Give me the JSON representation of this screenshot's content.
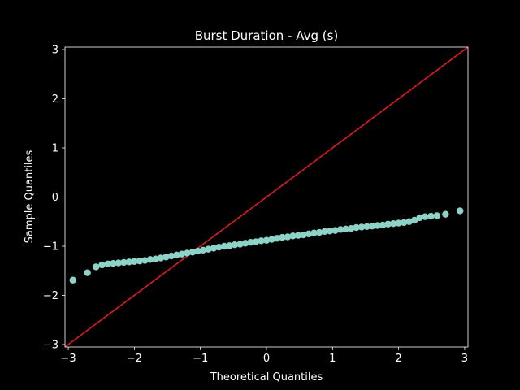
{
  "chart_data": {
    "type": "scatter",
    "title": "Burst Duration - Avg (s)",
    "xlabel": "Theoretical Quantiles",
    "ylabel": "Sample Quantiles",
    "xlim": [
      -3.05,
      3.05
    ],
    "ylim": [
      -3.05,
      3.05
    ],
    "xticks": [
      -3,
      -2,
      -1,
      0,
      1,
      2,
      3
    ],
    "xtick_labels": [
      "−3",
      "−2",
      "−1",
      "0",
      "1",
      "2",
      "3"
    ],
    "yticks": [
      -3,
      -2,
      -1,
      0,
      1,
      2,
      3
    ],
    "ytick_labels": [
      "−3",
      "−2",
      "−1",
      "0",
      "1",
      "2",
      "3"
    ],
    "grid": false,
    "background": "#000000",
    "marker_color": "#8dd3c7",
    "line_color": "#e41a1c",
    "reference_line": {
      "x": [
        -3.05,
        3.05
      ],
      "y": [
        -3.05,
        3.05
      ]
    },
    "series": [
      {
        "x": [
          -2.93,
          -2.71,
          -2.58,
          -2.49,
          -2.4,
          -2.32,
          -2.24,
          -2.16,
          -2.08,
          -2.0,
          -1.92,
          -1.84,
          -1.76,
          -1.68,
          -1.6,
          -1.52,
          -1.44,
          -1.36,
          -1.28,
          -1.2,
          -1.12,
          -1.04,
          -0.96,
          -0.88,
          -0.8,
          -0.72,
          -0.64,
          -0.56,
          -0.48,
          -0.4,
          -0.32,
          -0.24,
          -0.16,
          -0.08,
          0.0,
          0.08,
          0.16,
          0.24,
          0.32,
          0.4,
          0.48,
          0.56,
          0.64,
          0.72,
          0.8,
          0.88,
          0.96,
          1.04,
          1.12,
          1.2,
          1.28,
          1.36,
          1.44,
          1.52,
          1.6,
          1.68,
          1.76,
          1.84,
          1.92,
          2.0,
          2.08,
          2.16,
          2.24,
          2.32,
          2.4,
          2.49,
          2.58,
          2.71,
          2.93
        ],
        "y": [
          -1.69,
          -1.54,
          -1.42,
          -1.38,
          -1.36,
          -1.35,
          -1.34,
          -1.33,
          -1.32,
          -1.31,
          -1.3,
          -1.29,
          -1.27,
          -1.26,
          -1.24,
          -1.22,
          -1.2,
          -1.18,
          -1.16,
          -1.14,
          -1.12,
          -1.1,
          -1.08,
          -1.06,
          -1.04,
          -1.02,
          -1.0,
          -0.99,
          -0.97,
          -0.96,
          -0.94,
          -0.92,
          -0.91,
          -0.89,
          -0.88,
          -0.86,
          -0.84,
          -0.82,
          -0.81,
          -0.79,
          -0.78,
          -0.77,
          -0.75,
          -0.73,
          -0.72,
          -0.7,
          -0.69,
          -0.68,
          -0.66,
          -0.65,
          -0.64,
          -0.62,
          -0.61,
          -0.6,
          -0.59,
          -0.58,
          -0.57,
          -0.55,
          -0.54,
          -0.53,
          -0.52,
          -0.5,
          -0.47,
          -0.42,
          -0.4,
          -0.39,
          -0.38,
          -0.35,
          -0.28
        ]
      }
    ]
  }
}
